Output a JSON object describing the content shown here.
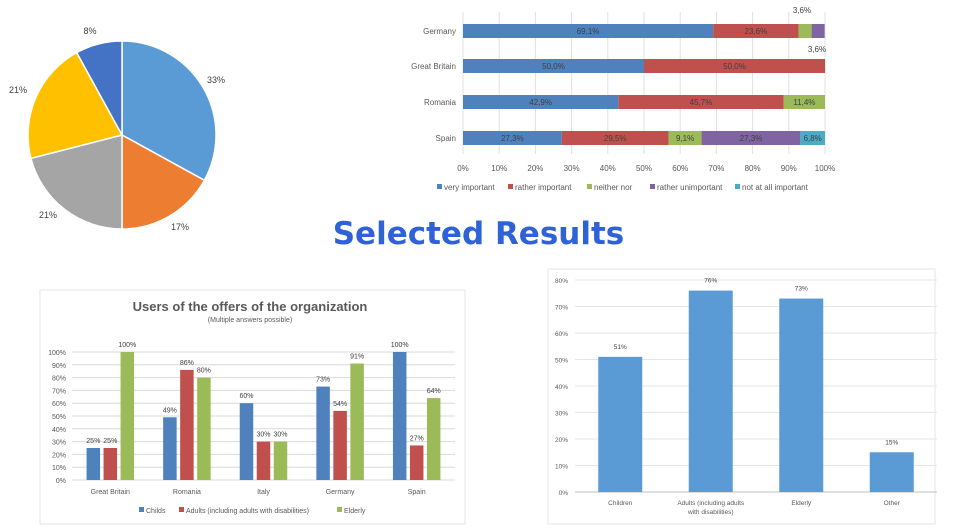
{
  "page_title": "Selected Results",
  "chart_data": [
    {
      "type": "pie",
      "slices": [
        {
          "value": 33,
          "label": "33%",
          "color": "#5B9BD5"
        },
        {
          "value": 17,
          "label": "17%",
          "color": "#ED7D31"
        },
        {
          "value": 21,
          "label": "21%",
          "color": "#A5A5A5"
        },
        {
          "value": 21,
          "label": "21%",
          "color": "#FFC000"
        },
        {
          "value": 8,
          "label": "8%",
          "color": "#4472C4"
        }
      ]
    },
    {
      "type": "bar",
      "orientation": "horizontal-stacked-100",
      "categories": [
        "Germany",
        "Great Britain",
        "Romania",
        "Spain"
      ],
      "series": [
        {
          "name": "very important",
          "color": "#4F81BD",
          "values": [
            69.1,
            50.0,
            42.9,
            27.3
          ],
          "labels": [
            "69,1%",
            "50,0%",
            "42,9%",
            "27,3%"
          ]
        },
        {
          "name": "rather important",
          "color": "#C0504D",
          "values": [
            23.6,
            50.0,
            45.7,
            29.5
          ],
          "labels": [
            "23,6%",
            "50,0%",
            "45,7%",
            "29,5%"
          ]
        },
        {
          "name": "neither nor",
          "color": "#9BBB59",
          "values": [
            3.6,
            0,
            11.4,
            9.1
          ],
          "labels": [
            "3,6%",
            "",
            "11,4%",
            "9,1%"
          ]
        },
        {
          "name": "rather unimportant",
          "color": "#8064A2",
          "values": [
            3.6,
            0,
            0,
            27.3
          ],
          "labels": [
            "3,6%",
            "",
            "",
            "27,3%"
          ]
        },
        {
          "name": "not at all important",
          "color": "#4BACC6",
          "values": [
            0,
            0,
            0,
            6.8
          ],
          "labels": [
            "",
            "",
            "",
            "6,8%"
          ]
        }
      ],
      "xticks": [
        "0%",
        "10%",
        "20%",
        "30%",
        "40%",
        "50%",
        "60%",
        "70%",
        "80%",
        "90%",
        "100%"
      ],
      "xlim": [
        0,
        100
      ],
      "legend": "bottom"
    },
    {
      "type": "bar",
      "title": "Users of the offers of the organization",
      "subtitle": "(Multiple answers possible)",
      "categories": [
        "Great Britain",
        "Romania",
        "Italy",
        "Germany",
        "Spain"
      ],
      "series": [
        {
          "name": "Childs",
          "color": "#4F81BD",
          "values": [
            25,
            49,
            60,
            73,
            100
          ]
        },
        {
          "name": "Adults (including adults with disabilities)",
          "color": "#C0504D",
          "values": [
            25,
            86,
            30,
            54,
            27
          ]
        },
        {
          "name": "Elderly",
          "color": "#9BBB59",
          "values": [
            100,
            80,
            30,
            91,
            64
          ]
        }
      ],
      "yticks": [
        "0%",
        "10%",
        "20%",
        "30%",
        "40%",
        "50%",
        "60%",
        "70%",
        "80%",
        "90%",
        "100%"
      ],
      "ylim": [
        0,
        100
      ],
      "grid": true,
      "legend": "bottom"
    },
    {
      "type": "bar",
      "categories": [
        "Children",
        "Adults (including adults|with disabilities)",
        "Elderly",
        "Other"
      ],
      "values": [
        51,
        76,
        73,
        15
      ],
      "color": "#5B9BD5",
      "yticks": [
        "0%",
        "10%",
        "20%",
        "30%",
        "40%",
        "50%",
        "60%",
        "70%",
        "80%"
      ],
      "ylim": [
        0,
        80
      ],
      "grid": true
    }
  ]
}
